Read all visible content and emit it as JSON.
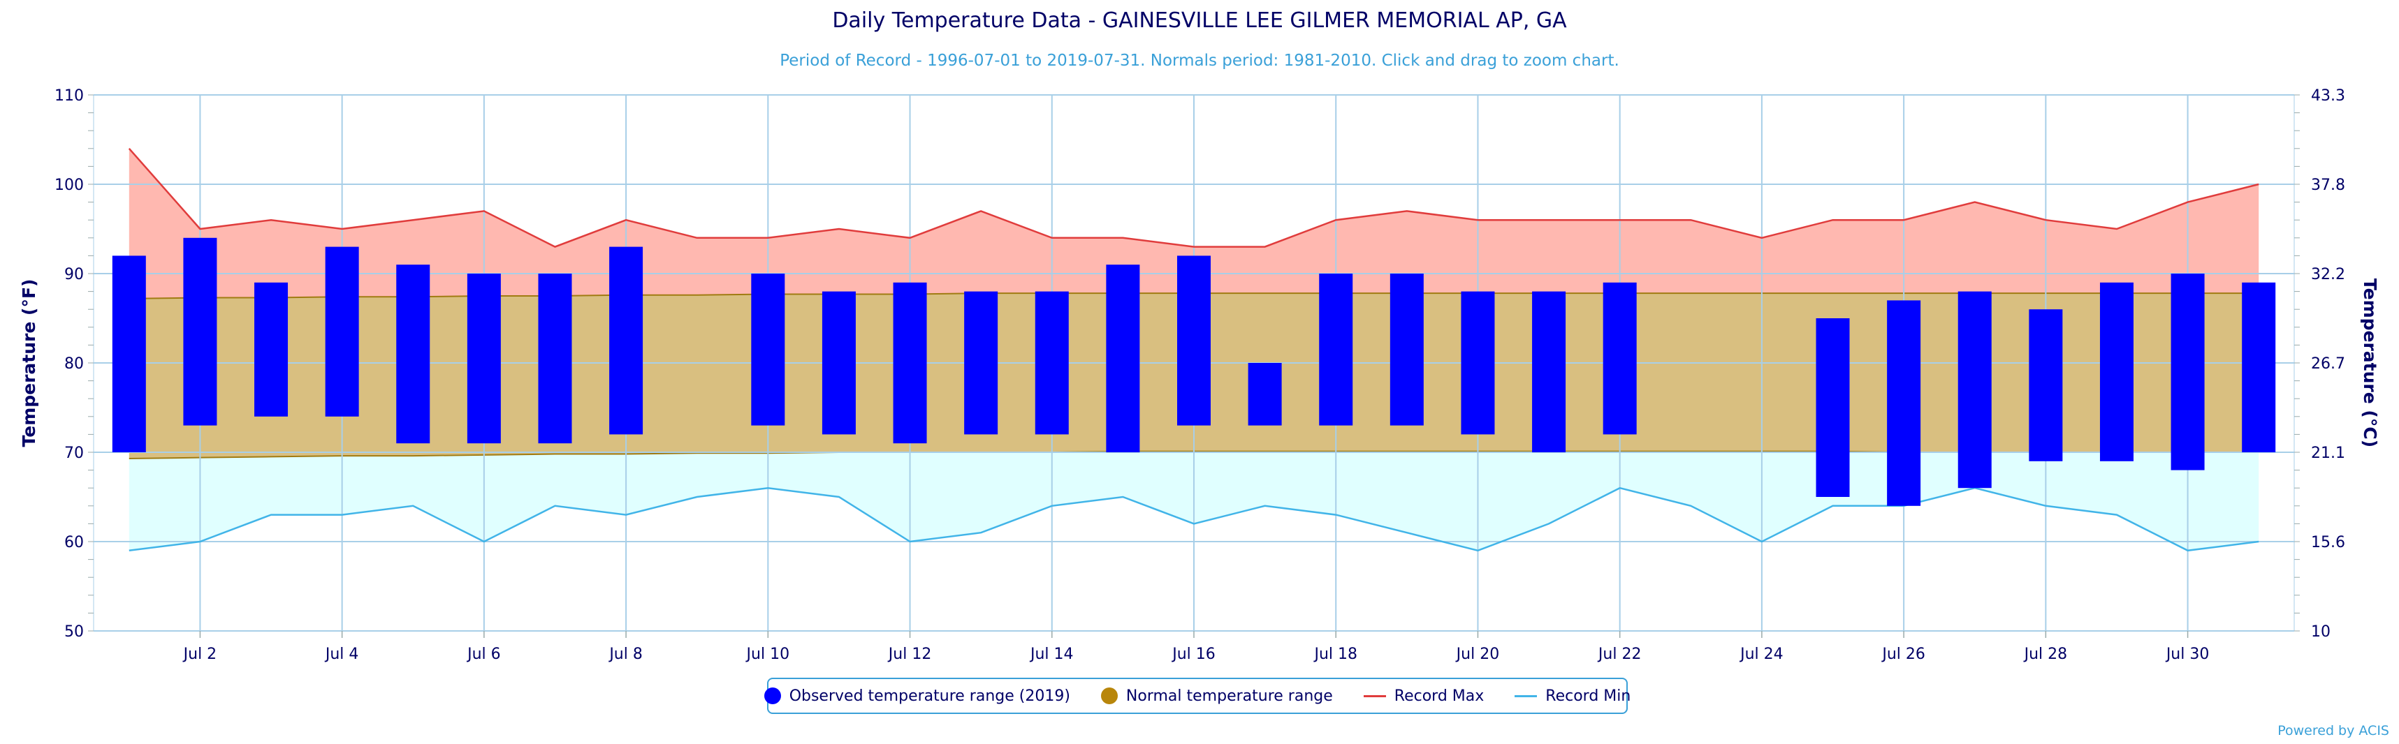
{
  "header": {
    "title": "Daily Temperature Data - GAINESVILLE LEE GILMER MEMORIAL AP, GA",
    "subtitle": "Period of Record - 1996-07-01 to 2019-07-31. Normals period: 1981-2010. Click and drag to zoom chart."
  },
  "legend": {
    "observed": "Observed temperature range (2019)",
    "normal": "Normal temperature range",
    "record_max": "Record Max",
    "record_min": "Record Min"
  },
  "credit": "Powered by ACIS",
  "colors": {
    "observed": "#0000ff",
    "normal_fill": "#d9bf80",
    "normal_marker": "#b8860b",
    "normal_line": "#a07b12",
    "record_max_line": "#e03c3c",
    "record_max_fill": "#ffb8b0",
    "record_min_line": "#41b4e8",
    "record_min_fill": "#e0ffff",
    "axis_text": "#000066",
    "grid": "#a8cfe8"
  },
  "chart_data": {
    "type": "bar",
    "title": "Daily Temperature Data - GAINESVILLE LEE GILMER MEMORIAL AP, GA",
    "xlabel": "",
    "ylabel": "Temperature (°F)",
    "ylabel_right": "Temperature (°C)",
    "ylim": [
      50,
      110
    ],
    "yticks": [
      50,
      60,
      70,
      80,
      90,
      100,
      110
    ],
    "yticks_right": [
      "10",
      "15.6",
      "21.1",
      "26.7",
      "32.2",
      "37.8",
      "43.3"
    ],
    "x_tick_labels": [
      "Jul 2",
      "Jul 4",
      "Jul 6",
      "Jul 8",
      "Jul 10",
      "Jul 12",
      "Jul 14",
      "Jul 16",
      "Jul 18",
      "Jul 20",
      "Jul 22",
      "Jul 24",
      "Jul 26",
      "Jul 28",
      "Jul 30"
    ],
    "x_tick_days": [
      2,
      4,
      6,
      8,
      10,
      12,
      14,
      16,
      18,
      20,
      22,
      24,
      26,
      28,
      30
    ],
    "grid": true,
    "legend_position": "bottom-center",
    "days": [
      1,
      2,
      3,
      4,
      5,
      6,
      7,
      8,
      9,
      10,
      11,
      12,
      13,
      14,
      15,
      16,
      17,
      18,
      19,
      20,
      21,
      22,
      23,
      24,
      25,
      26,
      27,
      28,
      29,
      30,
      31
    ],
    "series": [
      {
        "name": "Observed temperature range (2019)",
        "high": [
          92,
          94,
          89,
          93,
          91,
          90,
          90,
          93,
          null,
          90,
          88,
          89,
          88,
          88,
          91,
          92,
          80,
          90,
          90,
          88,
          88,
          89,
          null,
          null,
          85,
          87,
          88,
          86,
          89,
          90,
          89
        ],
        "low": [
          70,
          73,
          74,
          74,
          71,
          71,
          71,
          72,
          null,
          73,
          72,
          71,
          72,
          72,
          70,
          73,
          73,
          73,
          73,
          72,
          70,
          72,
          null,
          null,
          65,
          64,
          66,
          69,
          69,
          68,
          70
        ]
      },
      {
        "name": "Normal temperature range",
        "high": [
          87.2,
          87.3,
          87.3,
          87.4,
          87.4,
          87.5,
          87.5,
          87.6,
          87.6,
          87.7,
          87.7,
          87.7,
          87.8,
          87.8,
          87.8,
          87.8,
          87.8,
          87.8,
          87.8,
          87.8,
          87.8,
          87.8,
          87.8,
          87.8,
          87.8,
          87.8,
          87.8,
          87.8,
          87.8,
          87.8,
          87.8
        ],
        "low": [
          69.3,
          69.4,
          69.5,
          69.6,
          69.6,
          69.7,
          69.8,
          69.8,
          69.9,
          69.9,
          70.0,
          70.0,
          70.0,
          70.0,
          70.1,
          70.1,
          70.1,
          70.1,
          70.1,
          70.1,
          70.1,
          70.1,
          70.1,
          70.1,
          70.1,
          70.0,
          70.0,
          70.0,
          70.0,
          70.0,
          70.0
        ]
      },
      {
        "name": "Record Max",
        "values": [
          104,
          95,
          96,
          95,
          96,
          97,
          93,
          96,
          94,
          94,
          95,
          94,
          97,
          94,
          94,
          93,
          93,
          96,
          97,
          96,
          96,
          96,
          96,
          94,
          96,
          96,
          98,
          96,
          95,
          98,
          100
        ]
      },
      {
        "name": "Record Min",
        "values": [
          59,
          60,
          63,
          63,
          64,
          60,
          64,
          63,
          65,
          66,
          65,
          60,
          61,
          64,
          65,
          62,
          64,
          63,
          61,
          59,
          62,
          66,
          64,
          60,
          64,
          64,
          66,
          64,
          63,
          59,
          60
        ]
      }
    ]
  }
}
